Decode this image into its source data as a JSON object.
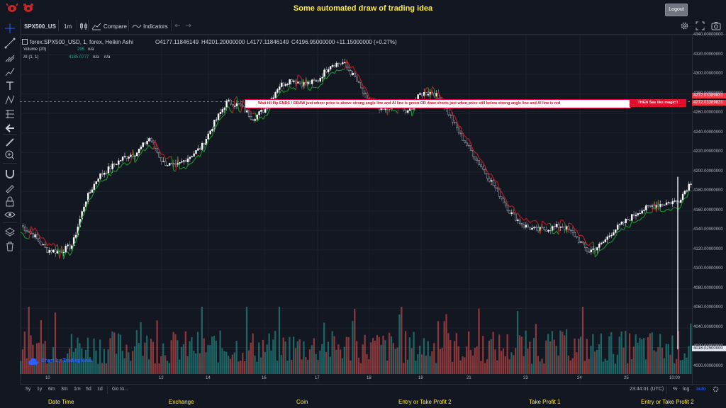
{
  "header": {
    "title": "Some automated draw of trading idea",
    "logout": "Logout"
  },
  "toolbar": {
    "symbol": "SPX500_US",
    "interval": "1m",
    "compare": "Compare",
    "indicators": "Indicators"
  },
  "legend": {
    "main": "forex:SPX500_USD, 1, forex, Heikin Ashi",
    "open": "O4177.11846149",
    "high": "H4201.20000000",
    "low": "L4177.11846149",
    "close": "C4196.95000000",
    "change": "+11.15000000 (+0.27%)",
    "volume_label": "Volume (20)",
    "volume_value": "295",
    "volume_na": "n/a",
    "ai_label": "AI (1, 1)",
    "ai_value": "4185.0777",
    "ai_na1": "n/a",
    "ai_na2": "n/a"
  },
  "banner": {
    "text": "Wait till flip ENDS  !   DRAW just when:  price is above strong angle line and AI line is green          OR          draw shorts just when price still below strong angle line and AI line is red",
    "highlight": "THEN See like magic!!"
  },
  "price_flags": [
    "4272.03389831",
    "4272.03389831"
  ],
  "current_volume": "4018.02500000",
  "y_axis": [
    "4340.00000000",
    "4320.00000000",
    "4300.00000000",
    "4280.00000000",
    "4260.00000000",
    "4240.00000000",
    "4220.00000000",
    "4200.00000000",
    "4180.00000000",
    "4160.00000000",
    "4140.00000000",
    "4120.00000000",
    "4100.00000000",
    "4080.00000000",
    "4060.00000000",
    "4040.00000000",
    "4020.00000000",
    "4000.00000000"
  ],
  "x_axis": [
    "10",
    "12",
    "14",
    "16",
    "17",
    "18",
    "19",
    "21",
    "23",
    "24",
    "25",
    "10:00"
  ],
  "watermark": "Chart by TradingView",
  "bottom": {
    "ranges": [
      "5y",
      "1y",
      "6m",
      "3m",
      "1m",
      "5d",
      "1d"
    ],
    "goto": "Go to...",
    "time": "23:44:01 (UTC)",
    "pct": "%",
    "log": "log",
    "auto": "auto"
  },
  "footer": [
    "Date Time",
    "Exchange",
    "Coin",
    "Entry or Take Profit 2",
    "Take Profit 1",
    "Entry or Take Profit 2"
  ],
  "colors": {
    "up": "#26a69a",
    "down": "#ef5350",
    "accent": "#ffeb3b",
    "bg": "#131722"
  },
  "chart_data": {
    "type": "heikin-ashi candlestick",
    "symbol": "forex:SPX500_USD",
    "ylim": [
      4000,
      4340
    ],
    "price_path": [
      4145,
      4135,
      4120,
      4118,
      4125,
      4170,
      4195,
      4205,
      4215,
      4220,
      4235,
      4210,
      4205,
      4215,
      4225,
      4250,
      4272,
      4268,
      4255,
      4265,
      4288,
      4295,
      4290,
      4293,
      4310,
      4312,
      4295,
      4270,
      4262,
      4270,
      4260,
      4280,
      4282,
      4265,
      4240,
      4220,
      4200,
      4180,
      4158,
      4145,
      4140,
      4142,
      4145,
      4135,
      4118,
      4125,
      4140,
      4150,
      4160,
      4165,
      4168,
      4170,
      4190
    ]
  }
}
